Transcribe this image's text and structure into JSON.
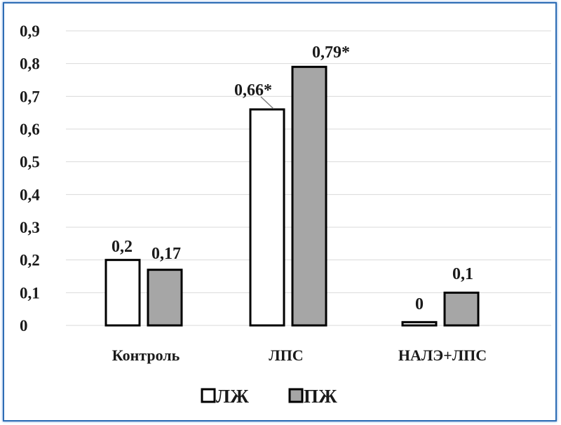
{
  "chart_data": {
    "type": "bar",
    "categories": [
      "Контроль",
      "ЛПС",
      "НАЛЭ+ЛПС"
    ],
    "series": [
      {
        "name": "ЛЖ",
        "values": [
          0.2,
          0.66,
          0.01
        ],
        "labels": [
          "0,2",
          "0,66*",
          "0"
        ],
        "color": "#ffffff"
      },
      {
        "name": "ПЖ",
        "values": [
          0.17,
          0.79,
          0.1
        ],
        "labels": [
          "0,17",
          "0,79*",
          "0,1"
        ],
        "color": "#a6a6a6"
      }
    ],
    "yticks": [
      "0",
      "0,1",
      "0,2",
      "0,3",
      "0,4",
      "0,5",
      "0,6",
      "0,7",
      "0,8",
      "0,9"
    ],
    "ylim": [
      0,
      0.9
    ],
    "grid": true,
    "legend": "bottom-center",
    "title": "",
    "xlabel": "",
    "ylabel": ""
  },
  "colors": {
    "frame": "#2e6db4",
    "grid": "#d9d9d9",
    "bar_outline": "#000000"
  }
}
